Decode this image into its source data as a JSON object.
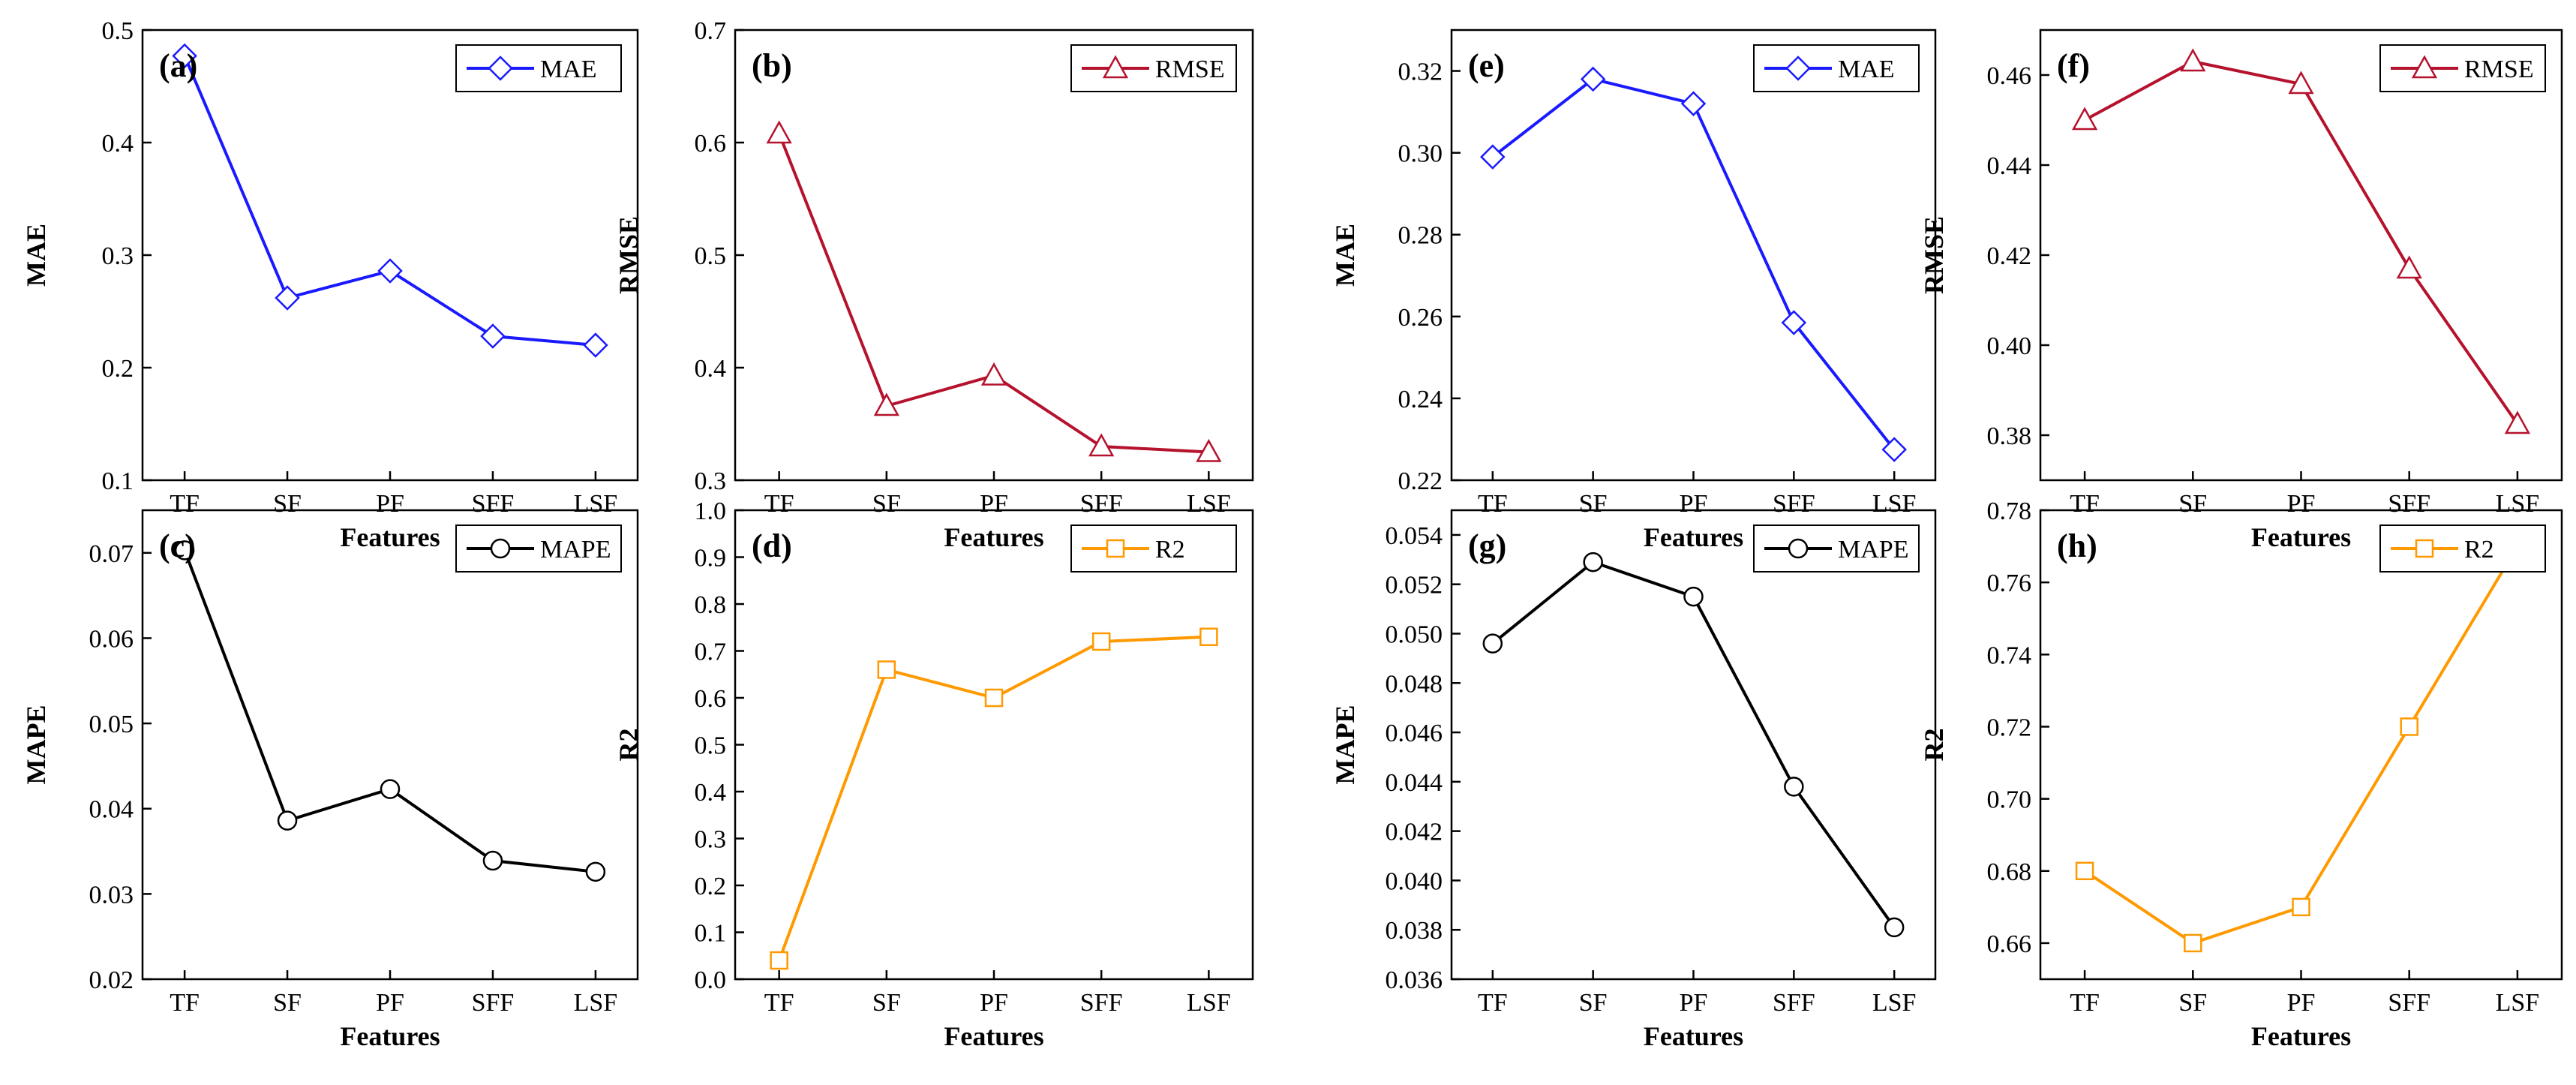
{
  "figure": {
    "xlabel": "Features"
  },
  "chart_data": [
    {
      "panel": "(a)",
      "type": "line",
      "categories": [
        "TF",
        "SF",
        "PF",
        "SFF",
        "LSF"
      ],
      "series": [
        {
          "name": "MAE",
          "values": [
            0.477,
            0.262,
            0.286,
            0.228,
            0.22
          ],
          "color": "#1a1aff",
          "marker": "diamond"
        }
      ],
      "xlabel": "Features",
      "ylabel": "MAE",
      "ylim": [
        0.1,
        0.5
      ],
      "yticks": [
        "0.1",
        "0.2",
        "0.3",
        "0.4",
        "0.5"
      ],
      "legend": "top-right"
    },
    {
      "panel": "(b)",
      "type": "line",
      "categories": [
        "TF",
        "SF",
        "PF",
        "SFF",
        "LSF"
      ],
      "series": [
        {
          "name": "RMSE",
          "values": [
            0.608,
            0.366,
            0.393,
            0.33,
            0.325
          ],
          "color": "#b5122d",
          "marker": "triangle"
        }
      ],
      "xlabel": "Features",
      "ylabel": "RMSE",
      "ylim": [
        0.3,
        0.7
      ],
      "yticks": [
        "0.3",
        "0.4",
        "0.5",
        "0.6",
        "0.7"
      ],
      "legend": "top-right"
    },
    {
      "panel": "(c)",
      "type": "line",
      "categories": [
        "TF",
        "SF",
        "PF",
        "SFF",
        "LSF"
      ],
      "series": [
        {
          "name": "MAPE",
          "values": [
            0.0703,
            0.0386,
            0.0423,
            0.0339,
            0.0326
          ],
          "color": "#000000",
          "marker": "circle"
        }
      ],
      "xlabel": "Features",
      "ylabel": "MAPE",
      "ylim": [
        0.02,
        0.075
      ],
      "yticks": [
        "0.02",
        "0.03",
        "0.04",
        "0.05",
        "0.06",
        "0.07"
      ],
      "legend": "top-right"
    },
    {
      "panel": "(d)",
      "type": "line",
      "categories": [
        "TF",
        "SF",
        "PF",
        "SFF",
        "LSF"
      ],
      "series": [
        {
          "name": "R2",
          "values": [
            0.04,
            0.66,
            0.6,
            0.72,
            0.73
          ],
          "color": "#ff9900",
          "marker": "square"
        }
      ],
      "xlabel": "Features",
      "ylabel": "R2",
      "ylim": [
        0.0,
        1.0
      ],
      "yticks": [
        "0.0",
        "0.1",
        "0.2",
        "0.3",
        "0.4",
        "0.5",
        "0.6",
        "0.7",
        "0.8",
        "0.9",
        "1.0"
      ],
      "legend": "top-right"
    },
    {
      "panel": "(e)",
      "type": "line",
      "categories": [
        "TF",
        "SF",
        "PF",
        "SFF",
        "LSF"
      ],
      "series": [
        {
          "name": "MAE",
          "values": [
            0.299,
            0.318,
            0.312,
            0.2585,
            0.2275
          ],
          "color": "#1a1aff",
          "marker": "diamond"
        }
      ],
      "xlabel": "Features",
      "ylabel": "MAE",
      "ylim": [
        0.22,
        0.33
      ],
      "yticks": [
        "0.22",
        "0.24",
        "0.26",
        "0.28",
        "0.30",
        "0.32"
      ],
      "legend": "top-right"
    },
    {
      "panel": "(f)",
      "type": "line",
      "categories": [
        "TF",
        "SF",
        "PF",
        "SFF",
        "LSF"
      ],
      "series": [
        {
          "name": "RMSE",
          "values": [
            0.45,
            0.463,
            0.458,
            0.417,
            0.3825
          ],
          "color": "#b5122d",
          "marker": "triangle"
        }
      ],
      "xlabel": "Features",
      "ylabel": "RMSE",
      "ylim": [
        0.37,
        0.47
      ],
      "yticks": [
        "0.38",
        "0.40",
        "0.42",
        "0.44",
        "0.46"
      ],
      "legend": "top-right"
    },
    {
      "panel": "(g)",
      "type": "line",
      "categories": [
        "TF",
        "SF",
        "PF",
        "SFF",
        "LSF"
      ],
      "series": [
        {
          "name": "MAPE",
          "values": [
            0.0496,
            0.0529,
            0.0515,
            0.0438,
            0.0381
          ],
          "color": "#000000",
          "marker": "circle"
        }
      ],
      "xlabel": "Features",
      "ylabel": "MAPE",
      "ylim": [
        0.036,
        0.055
      ],
      "yticks": [
        "0.036",
        "0.038",
        "0.040",
        "0.042",
        "0.044",
        "0.046",
        "0.048",
        "0.050",
        "0.052",
        "0.054"
      ],
      "legend": "top-right"
    },
    {
      "panel": "(h)",
      "type": "line",
      "categories": [
        "TF",
        "SF",
        "PF",
        "SFF",
        "LSF"
      ],
      "series": [
        {
          "name": "R2",
          "values": [
            0.68,
            0.66,
            0.67,
            0.72,
            0.77
          ],
          "color": "#ff9900",
          "marker": "square"
        }
      ],
      "xlabel": "Features",
      "ylabel": "R2",
      "ylim": [
        0.65,
        0.78
      ],
      "yticks": [
        "0.66",
        "0.68",
        "0.70",
        "0.72",
        "0.74",
        "0.76",
        "0.78"
      ],
      "legend": "top-right"
    }
  ]
}
